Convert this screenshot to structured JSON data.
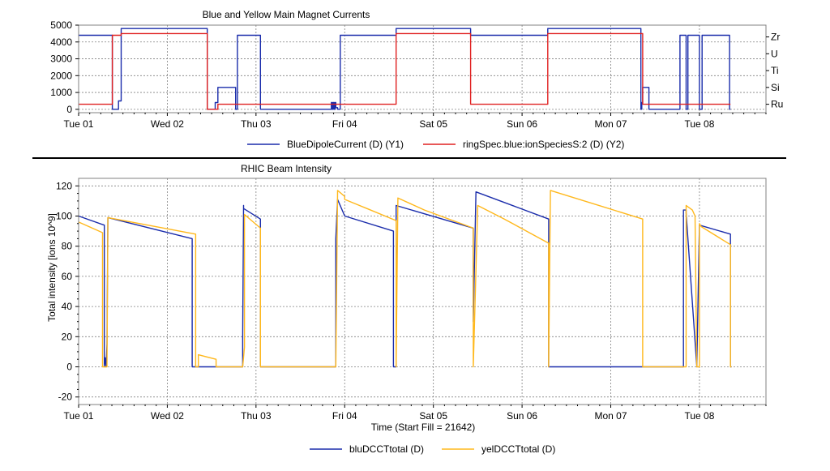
{
  "chart_data": [
    {
      "type": "line",
      "title": "Blue and Yellow Main Magnet Currents",
      "xlabel": "",
      "ylabel": "",
      "x_ticks": [
        "Tue 01",
        "Wed 02",
        "Thu 03",
        "Fri 04",
        "Sat 05",
        "Sun 06",
        "Mon 07",
        "Tue 08"
      ],
      "xlim": [
        0,
        7.75
      ],
      "ylim": [
        -200,
        5000
      ],
      "y_ticks": [
        0,
        1000,
        2000,
        3000,
        4000,
        5000
      ],
      "y2_ticks": [
        "Ru",
        "Si",
        "Ti",
        "U",
        "Zr"
      ],
      "y2_tick_values": [
        300,
        1300,
        2300,
        3300,
        4300
      ],
      "grid": true,
      "legend_position": "bottom",
      "series": [
        {
          "name": "BlueDipoleCurrent (D) (Y1)",
          "color": "#1a2cab",
          "x": [
            0,
            0.38,
            0.38,
            0.45,
            0.45,
            0.48,
            0.48,
            0.55,
            0.55,
            0.57,
            0.57,
            1.45,
            1.45,
            1.54,
            1.54,
            1.57,
            1.57,
            1.77,
            1.77,
            1.79,
            1.79,
            1.86,
            1.86,
            2.05,
            2.05,
            2.85,
            2.85,
            2.86,
            2.86,
            2.87,
            2.87,
            2.88,
            2.88,
            2.89,
            2.89,
            2.9,
            2.9,
            2.92,
            2.92,
            2.95,
            2.95,
            3.0,
            3.0,
            3.58,
            3.58,
            4.42,
            4.42,
            5.29,
            5.29,
            6.34,
            6.34,
            6.35,
            6.35,
            6.36,
            6.36,
            6.43,
            6.43,
            6.78,
            6.78,
            6.85,
            6.85,
            6.87,
            6.87,
            7.0,
            7.0,
            7.03,
            7.03,
            7.05,
            7.05,
            7.34,
            7.34,
            7.35
          ],
          "y": [
            4400,
            4400,
            0,
            0,
            500,
            500,
            4800,
            4800,
            4800,
            4800,
            4800,
            4800,
            0,
            0,
            400,
            400,
            1300,
            1300,
            0,
            0,
            4400,
            4400,
            4400,
            4400,
            0,
            0,
            400,
            400,
            0,
            0,
            400,
            400,
            0,
            0,
            400,
            400,
            100,
            100,
            0,
            0,
            4400,
            4400,
            4400,
            4400,
            4800,
            4800,
            4400,
            4400,
            4800,
            4800,
            0,
            0,
            400,
            400,
            1300,
            1300,
            0,
            0,
            4400,
            4400,
            0,
            0,
            4400,
            4400,
            0,
            0,
            4400,
            4400,
            4400,
            4400,
            0,
            0
          ]
        },
        {
          "name": "ringSpec.blue:ionSpeciesS:2 (D) (Y2)",
          "color": "#e02020",
          "x": [
            0,
            0.38,
            0.38,
            0.48,
            0.48,
            1.45,
            1.45,
            1.57,
            1.57,
            1.79,
            1.79,
            3.0,
            3.0,
            3.58,
            3.58,
            4.42,
            4.42,
            5.29,
            5.29,
            6.36,
            6.36,
            6.78,
            6.78,
            7.35
          ],
          "y": [
            300,
            300,
            4400,
            4400,
            4500,
            4500,
            0,
            0,
            300,
            300,
            300,
            300,
            300,
            300,
            4500,
            4500,
            300,
            300,
            4500,
            4500,
            300,
            300,
            300,
            300
          ]
        }
      ]
    },
    {
      "type": "line",
      "title": "RHIC Beam Intensity",
      "xlabel": "Time (Start Fill = 21642)",
      "ylabel": "Total intensity [ions 10^9]",
      "x_ticks": [
        "Tue 01",
        "Wed 02",
        "Thu 03",
        "Fri 04",
        "Sat 05",
        "Sun 06",
        "Mon 07",
        "Tue 08"
      ],
      "xlim": [
        0,
        7.75
      ],
      "ylim": [
        -25,
        125
      ],
      "y_ticks": [
        -20,
        0,
        20,
        40,
        60,
        80,
        100,
        120
      ],
      "grid": true,
      "legend_position": "bottom",
      "series": [
        {
          "name": "bluDCCTtotal (D)",
          "color": "#1a2cab",
          "x": [
            0,
            0.29,
            0.29,
            0.3,
            0.31,
            0.32,
            0.33,
            1.28,
            1.28,
            1.45,
            1.45,
            1.62,
            1.75,
            1.85,
            1.85,
            1.86,
            1.86,
            2.05,
            2.05,
            2.07,
            2.07,
            2.9,
            2.9,
            2.92,
            2.92,
            3.0,
            3.0,
            3.55,
            3.55,
            3.58,
            3.58,
            4.45,
            4.45,
            4.48,
            4.48,
            5.3,
            5.3,
            5.32,
            5.32,
            6.36,
            6.36,
            6.82,
            6.82,
            6.85,
            6.85,
            6.97,
            6.97,
            7.0,
            7.0,
            7.35,
            7.35,
            7.36
          ],
          "y": [
            100,
            94,
            0,
            6,
            0,
            15,
            99,
            85,
            0,
            0,
            0,
            0,
            0,
            0,
            20,
            107,
            105,
            98,
            0,
            0,
            0,
            0,
            85,
            111,
            111,
            100,
            100,
            90,
            0,
            0,
            107,
            92,
            30,
            116,
            116,
            98,
            0,
            0,
            0,
            0,
            0,
            0,
            104,
            104,
            102,
            0,
            0,
            94,
            94,
            88,
            0,
            0
          ]
        },
        {
          "name": "yelDCCTtotal (D)",
          "color": "#ffb81c",
          "x": [
            0,
            0.27,
            0.27,
            0.3,
            0.32,
            0.33,
            1.32,
            1.32,
            1.35,
            1.35,
            1.55,
            1.55,
            1.57,
            1.57,
            1.85,
            1.85,
            1.87,
            1.87,
            2.05,
            2.05,
            2.9,
            2.9,
            2.92,
            3.0,
            3.0,
            3.25,
            3.58,
            3.58,
            3.6,
            3.9,
            4.45,
            4.45,
            4.5,
            4.8,
            5.3,
            5.3,
            5.32,
            6.36,
            6.36,
            6.85,
            6.85,
            6.92,
            6.95,
            6.97,
            6.97,
            7.0,
            7.0,
            7.02,
            7.35,
            7.35,
            7.36
          ],
          "y": [
            96,
            89,
            0,
            0,
            0,
            99,
            88,
            0,
            0,
            8,
            5,
            0,
            0,
            0,
            0,
            0,
            13,
            101,
            92,
            0,
            0,
            0,
            117,
            113,
            111,
            105,
            97,
            0,
            112,
            104,
            92,
            0,
            107,
            98,
            82,
            0,
            117,
            98,
            0,
            0,
            107,
            104,
            100,
            0,
            0,
            0,
            95,
            93,
            81,
            0,
            0
          ]
        }
      ]
    }
  ]
}
